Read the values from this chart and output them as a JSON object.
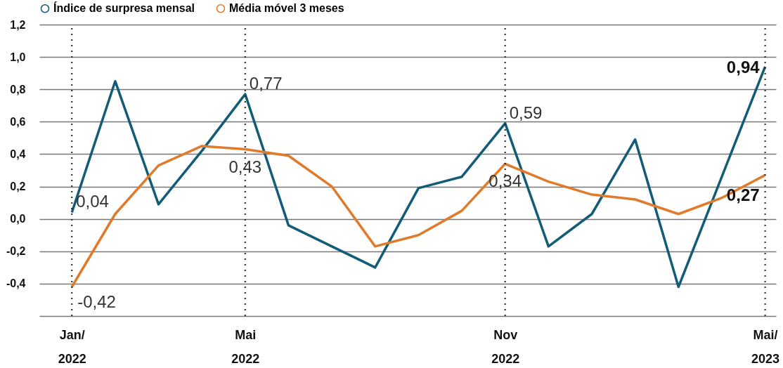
{
  "chart_data": {
    "type": "line",
    "categories": [
      "Jan/ 2022",
      null,
      null,
      null,
      "Mai 2022",
      null,
      null,
      null,
      null,
      null,
      "Nov 2022",
      null,
      null,
      null,
      null,
      null,
      "Mai/ 2023"
    ],
    "series": [
      {
        "name": "Índice de surpresa mensal",
        "color": "#125c78",
        "values": [
          0.04,
          0.85,
          0.09,
          0.42,
          0.77,
          -0.04,
          -0.17,
          -0.3,
          0.19,
          0.26,
          0.59,
          -0.17,
          0.03,
          0.49,
          -0.42,
          0.26,
          0.94
        ],
        "value_labels": [
          "0,04",
          null,
          null,
          null,
          "0,77",
          null,
          null,
          null,
          null,
          null,
          "0,59",
          null,
          null,
          null,
          null,
          null,
          "0,94"
        ]
      },
      {
        "name": "Média móvel 3 meses",
        "color": "#e07b2c",
        "values": [
          -0.42,
          0.03,
          0.33,
          0.45,
          0.43,
          0.39,
          0.2,
          -0.17,
          -0.1,
          0.05,
          0.34,
          0.23,
          0.15,
          0.12,
          0.03,
          0.13,
          0.27
        ],
        "value_labels": [
          "-0,42",
          null,
          null,
          null,
          "0,43",
          null,
          null,
          null,
          null,
          null,
          "0,34",
          null,
          null,
          null,
          null,
          null,
          "0,27"
        ]
      }
    ],
    "ylim": [
      -0.6,
      1.2
    ],
    "yticks": [
      {
        "value": -0.4,
        "label": "-0,4"
      },
      {
        "value": -0.2,
        "label": "-0,2"
      },
      {
        "value": 0,
        "label": "0,0"
      },
      {
        "value": 0.2,
        "label": "0,2"
      },
      {
        "value": 0.4,
        "label": "0,4"
      },
      {
        "value": 0.6,
        "label": "0,6"
      },
      {
        "value": 0.8,
        "label": "0,8"
      },
      {
        "value": 1.0,
        "label": "1,0"
      },
      {
        "value": 1.2,
        "label": "1,2"
      }
    ],
    "ref_lines": [
      {
        "axis": "x",
        "value": "Jan/ 2022",
        "line_style": "dotted",
        "color": "#222222"
      },
      {
        "axis": "x",
        "value": "Mai 2022",
        "line_style": "dotted",
        "color": "#222222"
      },
      {
        "axis": "x",
        "value": "Nov 2022",
        "line_style": "dotted",
        "color": "#222222"
      },
      {
        "axis": "x",
        "value": "Mai/ 2023",
        "line_style": "dotted",
        "color": "#222222"
      }
    ],
    "grid": "y",
    "legend": "top left",
    "marker": "none",
    "line_style": "solid"
  }
}
